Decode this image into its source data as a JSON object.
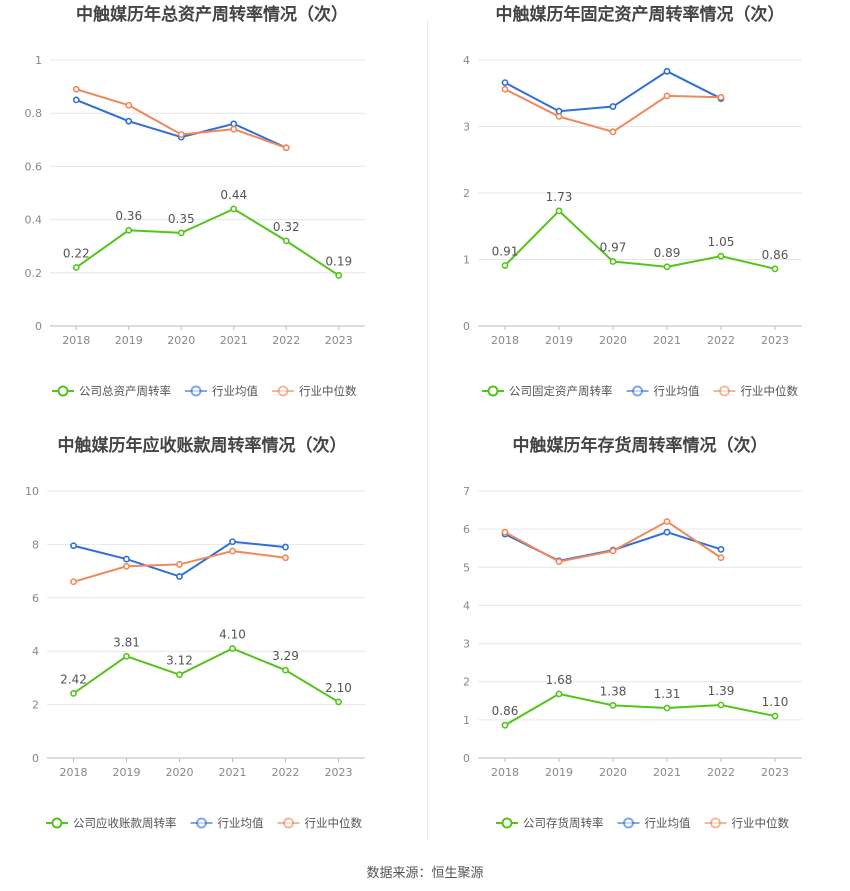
{
  "colors": {
    "company": "#52c41a",
    "industry_avg": "#2f6fd6",
    "industry_median": "#f0885a",
    "grid": "#e6e6e6",
    "axis_text": "#888888",
    "title": "#444444"
  },
  "source": "数据来源：恒生聚源",
  "chart_data": [
    {
      "type": "line",
      "title": "中触媒历年总资产周转率情况（次）",
      "categories": [
        "2018",
        "2019",
        "2020",
        "2021",
        "2022",
        "2023"
      ],
      "ylim": [
        0,
        1
      ],
      "yticks": [
        "0",
        "0.2",
        "0.4",
        "0.6",
        "0.8",
        "1"
      ],
      "ytick_values": [
        0,
        0.2,
        0.4,
        0.6,
        0.8,
        1
      ],
      "grid": true,
      "legend": "bottom",
      "series": [
        {
          "name": "公司总资产周转率",
          "key": "company",
          "values": [
            0.22,
            0.36,
            0.35,
            0.44,
            0.32,
            0.19
          ],
          "labels": [
            "0.22",
            "0.36",
            "0.35",
            "0.44",
            "0.32",
            "0.19"
          ]
        },
        {
          "name": "行业均值",
          "key": "industry_avg",
          "values": [
            0.85,
            0.77,
            0.71,
            0.76,
            0.67,
            null
          ]
        },
        {
          "name": "行业中位数",
          "key": "industry_median",
          "values": [
            0.89,
            0.83,
            0.72,
            0.74,
            0.67,
            null
          ]
        }
      ]
    },
    {
      "type": "line",
      "title": "中触媒历年固定资产周转率情况（次）",
      "categories": [
        "2018",
        "2019",
        "2020",
        "2021",
        "2022",
        "2023"
      ],
      "ylim": [
        0,
        4
      ],
      "yticks": [
        "0",
        "1",
        "2",
        "3",
        "4"
      ],
      "ytick_values": [
        0,
        1,
        2,
        3,
        4
      ],
      "grid": true,
      "legend": "bottom",
      "series": [
        {
          "name": "公司固定资产周转率",
          "key": "company",
          "values": [
            0.91,
            1.73,
            0.97,
            0.89,
            1.05,
            0.86
          ],
          "labels": [
            "0.91",
            "1.73",
            "0.97",
            "0.89",
            "1.05",
            "0.86"
          ]
        },
        {
          "name": "行业均值",
          "key": "industry_avg",
          "values": [
            3.66,
            3.23,
            3.3,
            3.83,
            3.42,
            null
          ]
        },
        {
          "name": "行业中位数",
          "key": "industry_median",
          "values": [
            3.56,
            3.15,
            2.92,
            3.46,
            3.44,
            null
          ]
        }
      ]
    },
    {
      "type": "line",
      "title": "中触媒历年应收账款周转率情况（次）",
      "categories": [
        "2018",
        "2019",
        "2020",
        "2021",
        "2022",
        "2023"
      ],
      "ylim": [
        0,
        10
      ],
      "yticks": [
        "0",
        "2",
        "4",
        "6",
        "8",
        "10"
      ],
      "ytick_values": [
        0,
        2,
        4,
        6,
        8,
        10
      ],
      "grid": true,
      "legend": "bottom",
      "series": [
        {
          "name": "公司应收账款周转率",
          "key": "company",
          "values": [
            2.42,
            3.81,
            3.12,
            4.1,
            3.29,
            2.1
          ],
          "labels": [
            "2.42",
            "3.81",
            "3.12",
            "4.10",
            "3.29",
            "2.10"
          ]
        },
        {
          "name": "行业均值",
          "key": "industry_avg",
          "values": [
            7.95,
            7.45,
            6.8,
            8.1,
            7.9,
            null
          ]
        },
        {
          "name": "行业中位数",
          "key": "industry_median",
          "values": [
            6.6,
            7.18,
            7.25,
            7.75,
            7.5,
            null
          ]
        }
      ]
    },
    {
      "type": "line",
      "title": "中触媒历年存货周转率情况（次）",
      "categories": [
        "2018",
        "2019",
        "2020",
        "2021",
        "2022",
        "2023"
      ],
      "ylim": [
        0,
        7
      ],
      "yticks": [
        "0",
        "1",
        "2",
        "3",
        "4",
        "5",
        "6",
        "7"
      ],
      "ytick_values": [
        0,
        1,
        2,
        3,
        4,
        5,
        6,
        7
      ],
      "grid": true,
      "legend": "bottom",
      "series": [
        {
          "name": "公司存货周转率",
          "key": "company",
          "values": [
            0.86,
            1.68,
            1.38,
            1.31,
            1.39,
            1.1
          ],
          "labels": [
            "0.86",
            "1.68",
            "1.38",
            "1.31",
            "1.39",
            "1.10"
          ]
        },
        {
          "name": "行业均值",
          "key": "industry_avg",
          "values": [
            5.87,
            5.17,
            5.45,
            5.92,
            5.47,
            null
          ]
        },
        {
          "name": "行业中位数",
          "key": "industry_median",
          "values": [
            5.92,
            5.15,
            5.43,
            6.2,
            5.25,
            null
          ]
        }
      ]
    }
  ]
}
